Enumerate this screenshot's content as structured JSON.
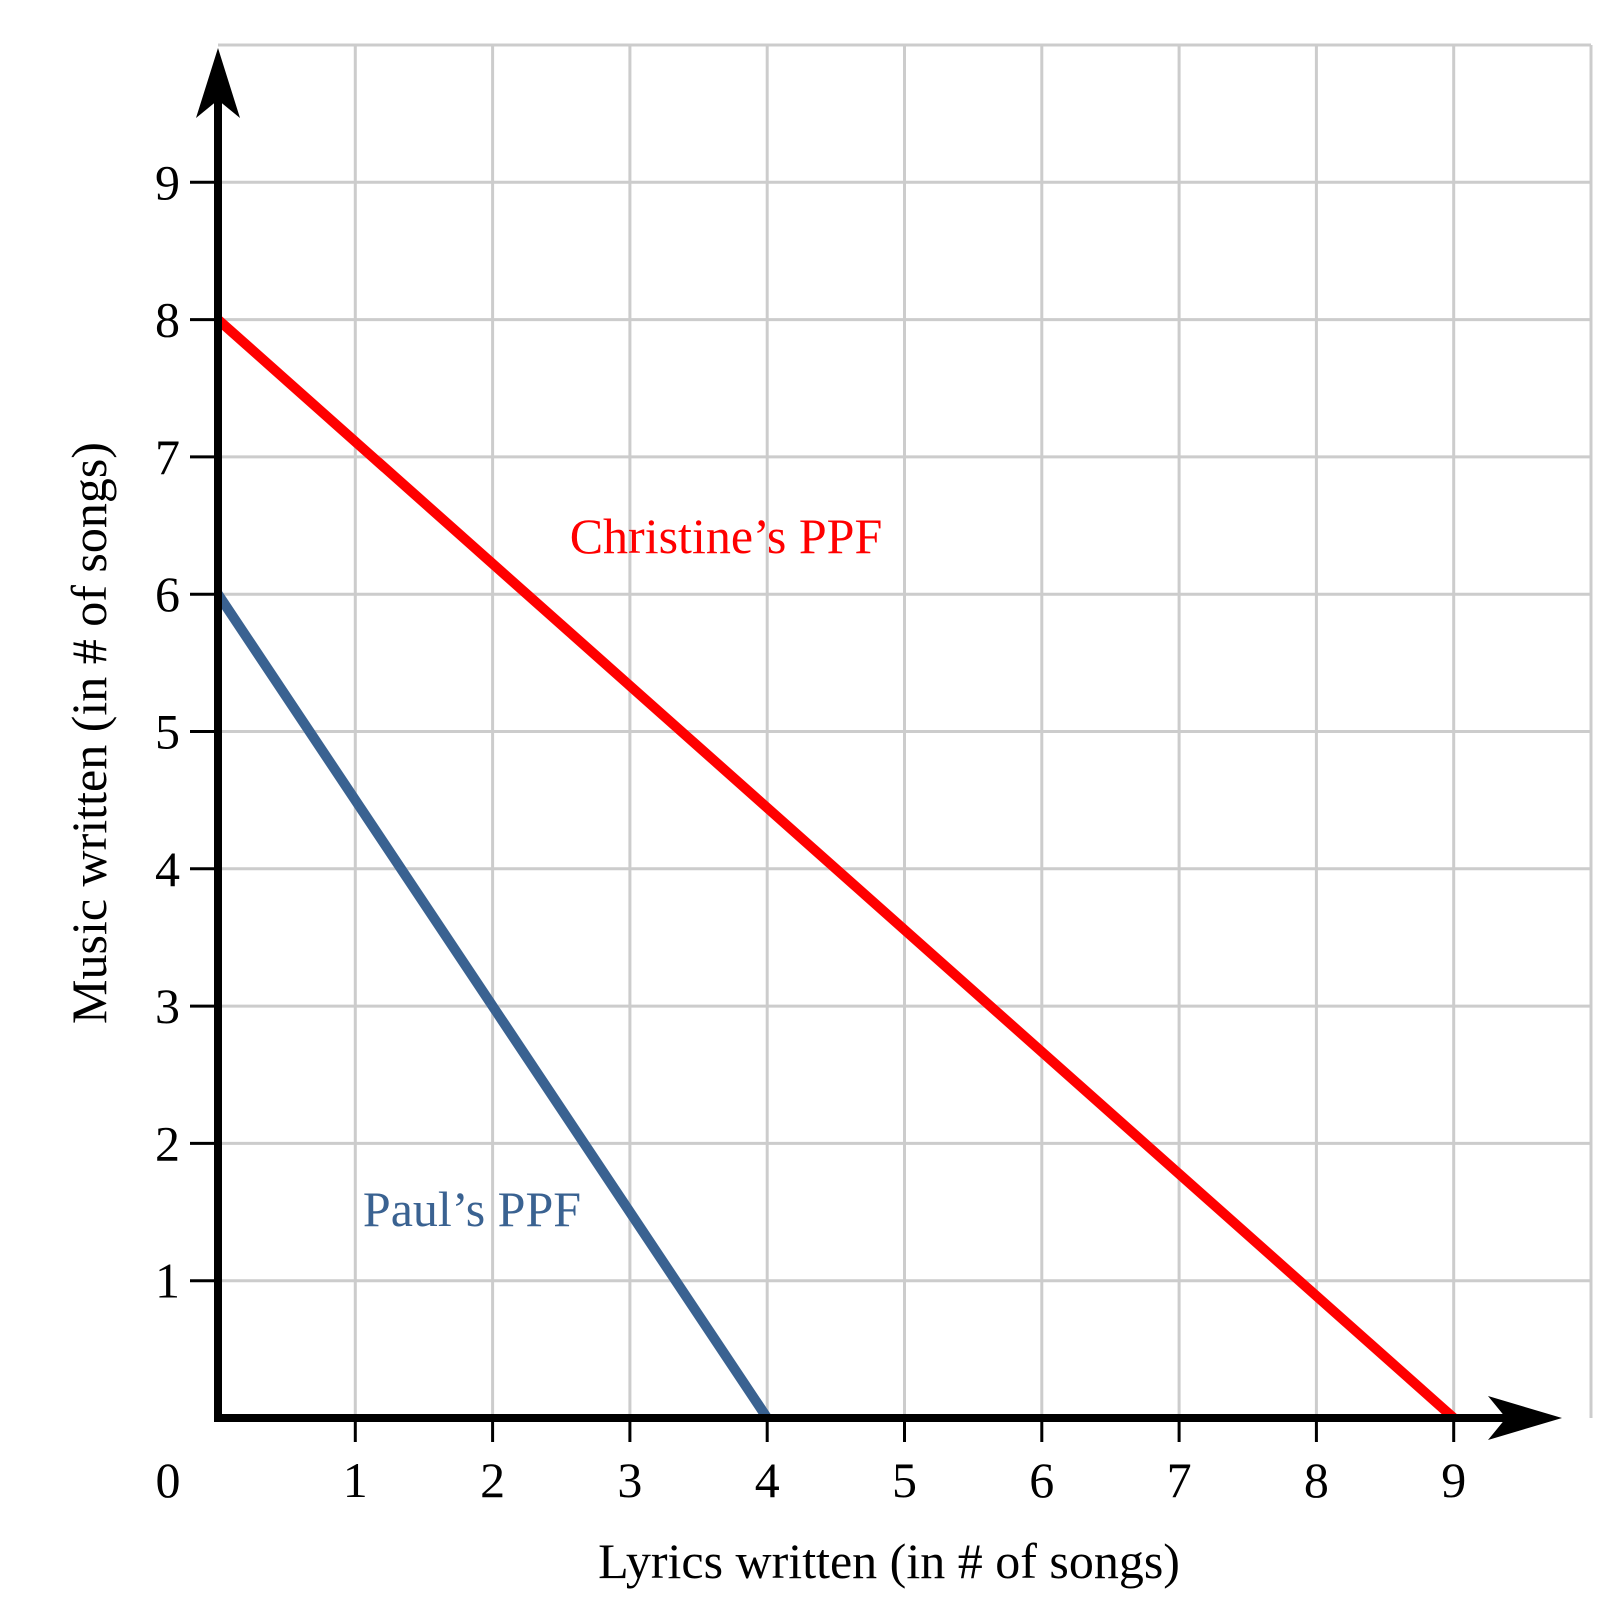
{
  "chart_data": {
    "type": "line",
    "title": "",
    "xlabel": "Lyrics written (in # of songs)",
    "ylabel": "Music written (in # of songs)",
    "xlim": [
      0,
      10
    ],
    "ylim": [
      0,
      10
    ],
    "grid": true,
    "origin_label": "0",
    "x_ticks": [
      "1",
      "2",
      "3",
      "4",
      "5",
      "6",
      "7",
      "8",
      "9"
    ],
    "y_ticks": [
      "1",
      "2",
      "3",
      "4",
      "5",
      "6",
      "7",
      "8",
      "9"
    ],
    "series": [
      {
        "name": "Christine’s PPF",
        "color": "#ff0000",
        "points": [
          [
            0,
            8
          ],
          [
            9,
            0
          ]
        ]
      },
      {
        "name": "Paul’s PPF",
        "color": "#3a6291",
        "points": [
          [
            0,
            6
          ],
          [
            4,
            0
          ]
        ]
      }
    ],
    "annotations": [
      {
        "text": "Christine’s PPF",
        "x": 3.7,
        "y": 6.3,
        "color": "#ff0000"
      },
      {
        "text": "Paul’s PPF",
        "x": 1.85,
        "y": 1.4,
        "color": "#3a6291"
      }
    ]
  }
}
